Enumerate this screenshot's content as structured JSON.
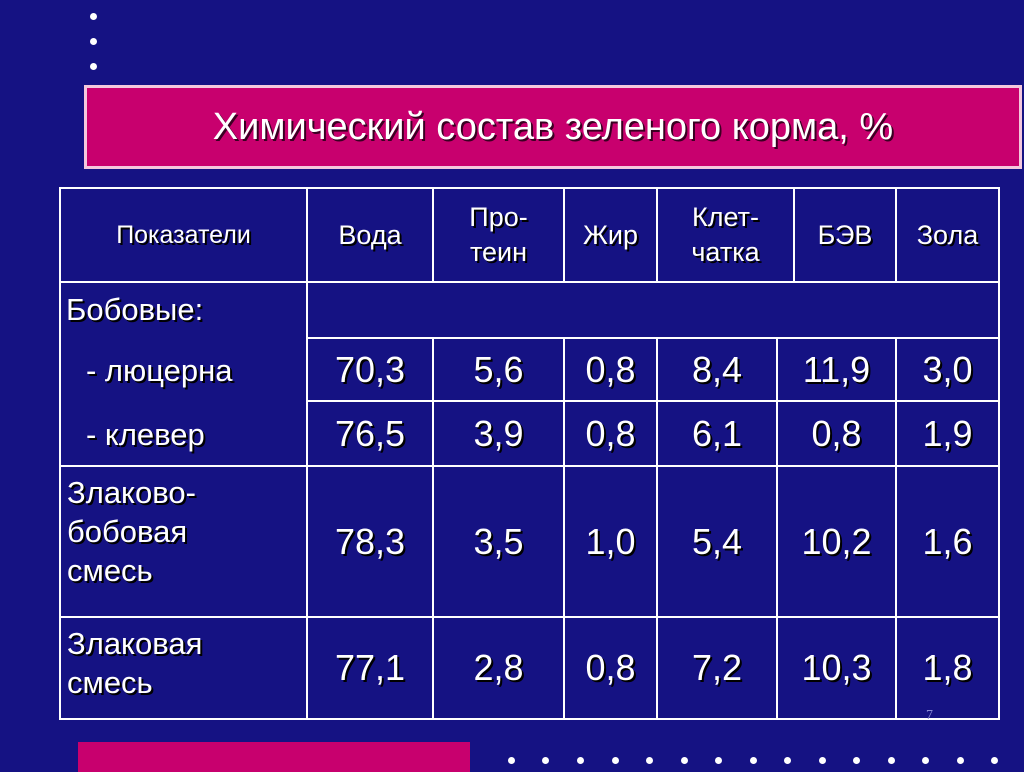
{
  "title": "Химический состав зеленого корма, %",
  "headers": {
    "indicators": "Показатели",
    "water": "Вода",
    "protein": "Про-\nтеин",
    "fat": "Жир",
    "fiber": "Клет-\nчатка",
    "bev": "БЭВ",
    "ash": "Зола"
  },
  "groups": {
    "legumes": "Бобовые:",
    "alfalfa": "- люцерна",
    "clover": "- клевер",
    "grass_legume_mix": "Злаково-\nбобовая\nсмесь",
    "grass_mix": "Злаковая\nсмесь"
  },
  "rows": {
    "alfalfa": [
      "70,3",
      "5,6",
      "0,8",
      "8,4",
      "11,9",
      "3,0"
    ],
    "clover": [
      "76,5",
      "3,9",
      "0,8",
      "6,1",
      "0,8",
      "1,9"
    ],
    "grass_legume_mix": [
      "78,3",
      "3,5",
      "1,0",
      "5,4",
      "10,2",
      "1,6"
    ],
    "grass_mix": [
      "77,1",
      "2,8",
      "0,8",
      "7,2",
      "10,3",
      "1,8"
    ]
  },
  "page_number": "7",
  "colors": {
    "background": "#151283",
    "accent": "#c8006e",
    "text": "#ffffff"
  }
}
